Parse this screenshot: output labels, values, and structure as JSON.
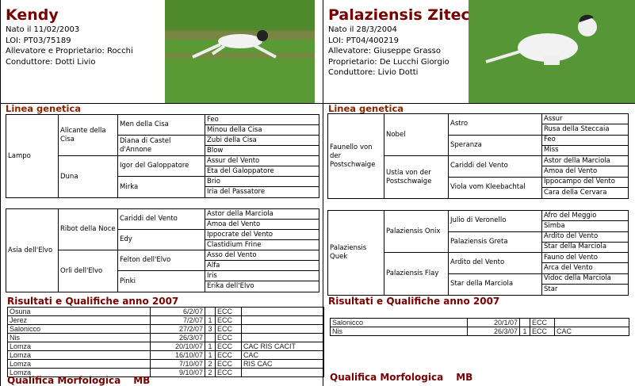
{
  "left": {
    "name": "Kendy",
    "info": [
      "Nato il  11/02/2003",
      "LOI: PT03/75189",
      "Allevatore e Proprietario: Rocchi",
      "Conduttore: Dotti Livio"
    ],
    "section_pedigree": "Linea genetica",
    "pedigree": [
      {
        "g1": [
          "Lampo"
        ],
        "g2": [
          "Alicante della Cisa",
          "Duna"
        ],
        "g3": [
          "Men della Cisa",
          "Diana di Castel d'Annone",
          "Igor del Galoppatore",
          "Mirka"
        ],
        "g4": [
          "Feo",
          "Minou della Cisa",
          "Zubi della Cisa",
          "Blow",
          "Assur del Vento",
          "Eta del Galoppatore",
          "Brio",
          "Iria del Passatore"
        ]
      },
      {
        "g1": [
          "Asia dell'Elvo"
        ],
        "g2": [
          "Ribot della Noce",
          "Orlì dell'Elvo"
        ],
        "g3": [
          "Cariddi del Vento",
          "Edy",
          "Felton dell'Elvo",
          "Pinki"
        ],
        "g4": [
          "Astor della Marciola",
          "Amoa del Vento",
          "Ippocrate del Vento",
          "Clastidium Frine",
          "Asso del Vento",
          "Alfa",
          "Iris",
          "Erika dell'Elvo"
        ]
      }
    ],
    "section_results": "Risultati e Qualifiche anno 2007",
    "results": [
      [
        "Osuna",
        "6/2/07",
        "",
        "ECC",
        ""
      ],
      [
        "Jerez",
        "7/2/07",
        "1",
        "ECC",
        ""
      ],
      [
        "Salonicco",
        "27/2/07",
        "3",
        "ECC",
        ""
      ],
      [
        "Nis",
        "26/3/07",
        "",
        "ECC",
        ""
      ],
      [
        "Lomza",
        "20/10/07",
        "1",
        "ECC",
        "CAC RIS CACIT"
      ],
      [
        "Lomza",
        "16/10/07",
        "1",
        "ECC",
        "CAC"
      ],
      [
        "Lomza",
        "7/10/07",
        "2",
        "ECC",
        "RIS CAC"
      ],
      [
        "Lomza",
        "9/10/07",
        "2",
        "ECC",
        ""
      ]
    ],
    "morf_label": "Qualifica Morfologica",
    "morf_value": "MB"
  },
  "right": {
    "name": "Palaziensis Zitec",
    "info": [
      "Nato il  28/3/2004",
      "LOI:  PT04/400219",
      "Allevatore: Giuseppe Grasso",
      "Proprietario: De Lucchi Giorgio",
      "Conduttore: Livio Dotti"
    ],
    "section_pedigree": "Linea genetica",
    "pedigree": [
      {
        "g1": [
          "Faunello von der Postschwaige"
        ],
        "g2": [
          "Nobel",
          "Ustia von der Postschwaige"
        ],
        "g3": [
          "Astro",
          "Speranza",
          "Cariddi del Vento",
          "Viola vom Kleebachtal"
        ],
        "g4": [
          "Assur",
          "Rusa della Steccaia",
          "Feo",
          "Miss",
          "Astor della Marciola",
          "Amoa del Vento",
          "Ippocampo del Vento",
          "Cara della Cervara"
        ]
      },
      {
        "g1": [
          "Palaziensis Quek"
        ],
        "g2": [
          "Palaziensis Onix",
          "Palaziensis Flay"
        ],
        "g3": [
          "Julio  di Veronello",
          "Palaziensis Greta",
          "Ardito del Vento",
          "Star della Marciola"
        ],
        "g4": [
          "Afro del Meggio",
          "Simba",
          "Ardito del Vento",
          "Star della Marciola",
          "Fauno del Vento",
          "Arca del Vento",
          "Vidoc della Marciola",
          "Star"
        ]
      }
    ],
    "section_results": "Risultati e Qualifiche anno 2007",
    "results": [
      [
        "Salonicco",
        "20/1/07",
        "",
        "ECC",
        ""
      ],
      [
        "Nis",
        "26/3/07",
        "1",
        "ECC",
        "CAC"
      ]
    ],
    "morf_label": "Qualifica Morfologica",
    "morf_value": "MB"
  },
  "colors": {
    "title": "#7a0000",
    "section": "#8b2500",
    "grass": "#4f8f2f"
  }
}
